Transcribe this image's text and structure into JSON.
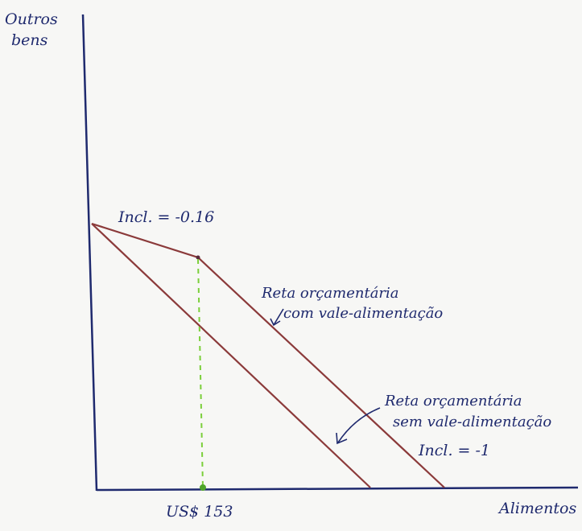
{
  "labels": {
    "y_axis_line1": "Outros",
    "y_axis_line2": "bens",
    "x_axis": "Alimentos",
    "x_tick": "US$ 153",
    "slope_with_voucher": "Incl. = -0.16",
    "slope_without_voucher": "Incl. = -1",
    "line_with_voucher_1": "Reta orçamentária",
    "line_with_voucher_2": "com vale-alimentação",
    "line_without_voucher_1": "Reta orçamentária",
    "line_without_voucher_2": "sem vale-alimentação"
  },
  "colors": {
    "axes": "#1f2a6e",
    "budget_lines": "#8b3a3a",
    "dashed_guide": "#7bcf3a",
    "text": "#1f2a6e"
  }
}
